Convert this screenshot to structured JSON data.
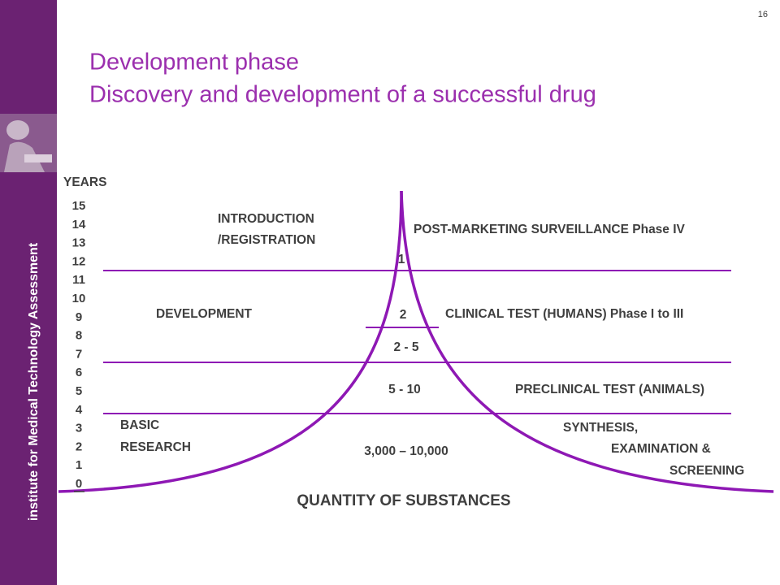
{
  "page_number": "16",
  "title": [
    "Development phase",
    "Discovery and development of a successful drug"
  ],
  "sidebar_text": "institute for Medical Technology Assessment",
  "years_label": "YEARS",
  "years": [
    "15",
    "14",
    "13",
    "12",
    "11",
    "10",
    "9",
    "8",
    "7",
    "6",
    "5",
    "4",
    "3",
    "2",
    "1",
    "0"
  ],
  "left_labels": {
    "introduction": [
      "INTRODUCTION",
      "/REGISTRATION"
    ],
    "development": "DEVELOPMENT",
    "basic_research": [
      "BASIC",
      "RESEARCH"
    ]
  },
  "right_labels": {
    "post_marketing": "POST-MARKETING SURVEILLANCE Phase IV",
    "clinical": "CLINICAL TEST (HUMANS)  Phase I to III",
    "preclinical": "PRECLINICAL TEST (ANIMALS)",
    "synthesis": [
      "SYNTHESIS,",
      "EXAMINATION &",
      "SCREENING"
    ]
  },
  "quantities": [
    "1",
    "2",
    "2 - 5",
    "5 - 10",
    "3,000 – 10,000"
  ],
  "x_axis_label": "QUANTITY OF SUBSTANCES"
}
